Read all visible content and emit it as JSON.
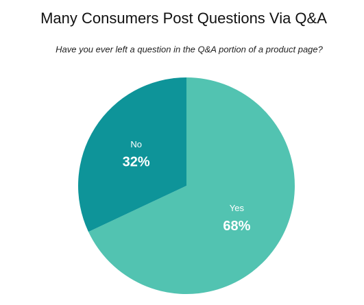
{
  "chart_data": {
    "type": "pie",
    "title": "Many Consumers Post Questions Via Q&A",
    "subtitle": "Have you ever left a question in the Q&A portion of a product page?",
    "categories": [
      "Yes",
      "No"
    ],
    "values": [
      68,
      32
    ],
    "value_labels": [
      "68%",
      "32%"
    ],
    "colors": [
      "#52c3b1",
      "#0e9499"
    ]
  }
}
